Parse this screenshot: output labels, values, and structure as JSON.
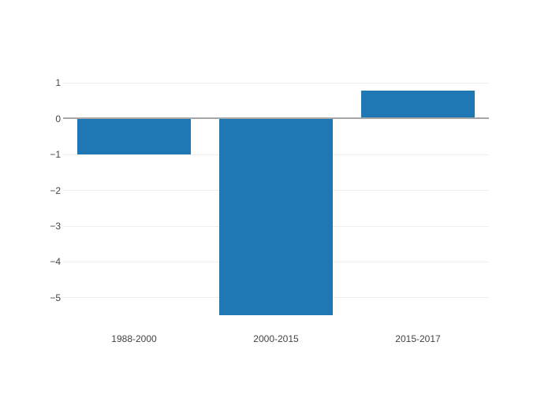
{
  "chart_data": {
    "type": "bar",
    "categories": [
      "1988-2000",
      "2000-2015",
      "2015-2017"
    ],
    "values": [
      -1,
      -5.5,
      0.8
    ],
    "title": "",
    "xlabel": "",
    "ylabel": "",
    "ylim": [
      -5.93,
      1.12
    ],
    "yticks": [
      1,
      0,
      -1,
      -2,
      -3,
      -4,
      -5
    ],
    "grid": true,
    "legend": "none",
    "colors": {
      "bar": "#1f77b4",
      "grid": "#eeeeee",
      "zeroline": "#a6a6a6",
      "tick_label": "#444444",
      "background": "#ffffff"
    }
  }
}
